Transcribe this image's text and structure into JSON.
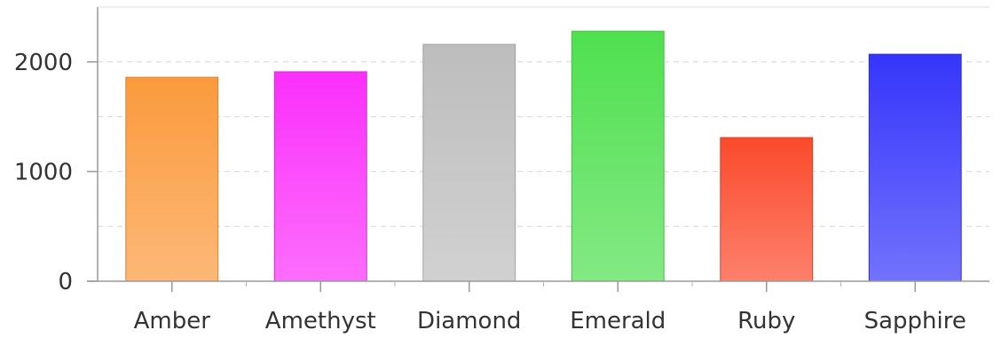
{
  "chart_data": {
    "type": "bar",
    "categories": [
      "Amber",
      "Amethyst",
      "Diamond",
      "Emerald",
      "Ruby",
      "Sapphire"
    ],
    "values": [
      1860,
      1910,
      2160,
      2280,
      1310,
      2070
    ],
    "colors": [
      "#fb9a3c",
      "#fb2ffb",
      "#bdbdbd",
      "#4fe04f",
      "#fb4a2c",
      "#3535fb"
    ],
    "yticks": [
      0,
      1000,
      2000
    ],
    "ylim": [
      0,
      2500
    ],
    "grid": true,
    "title": "",
    "xlabel": "",
    "ylabel": ""
  }
}
